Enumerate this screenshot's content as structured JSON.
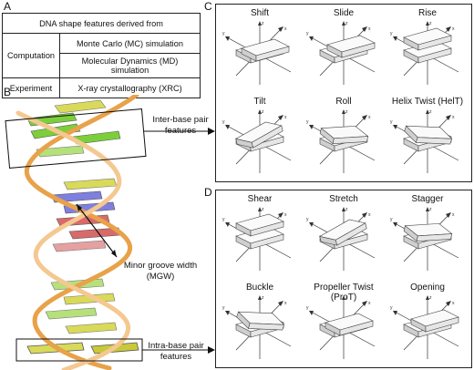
{
  "panels": {
    "a": "A",
    "b": "B",
    "c": "C",
    "d": "D"
  },
  "table": {
    "header": "DNA shape features derived from",
    "rows": [
      {
        "method": "Computation",
        "source": "Monte Carlo (MC) simulation"
      },
      {
        "method": "",
        "source": "Molecular Dynamics (MD) simulation"
      },
      {
        "method": "Experiment",
        "source": "X-ray crystallography (XRC)"
      }
    ]
  },
  "annotations": {
    "inter_line1": "Inter-base pair",
    "inter_line2": "features",
    "mgw_line1": "Minor groove width",
    "mgw_line2": "(MGW)",
    "intra_line1": "Intra-base pair",
    "intra_line2": "features"
  },
  "inter_features": [
    "Shift",
    "Slide",
    "Rise",
    "Tilt",
    "Roll",
    "Helix Twist (HelT)"
  ],
  "intra_features": [
    "Shear",
    "Stretch",
    "Stagger",
    "Buckle",
    "Propeller Twist (ProT)",
    "Opening"
  ],
  "axes": {
    "x": "x",
    "y": "y",
    "z": "z"
  },
  "colors": {
    "backbone": "#e8a24a",
    "base_green": "#7ccf3a",
    "base_yellow": "#d9d95a",
    "base_blue": "#7f7fe0",
    "base_red": "#d96a6a"
  }
}
